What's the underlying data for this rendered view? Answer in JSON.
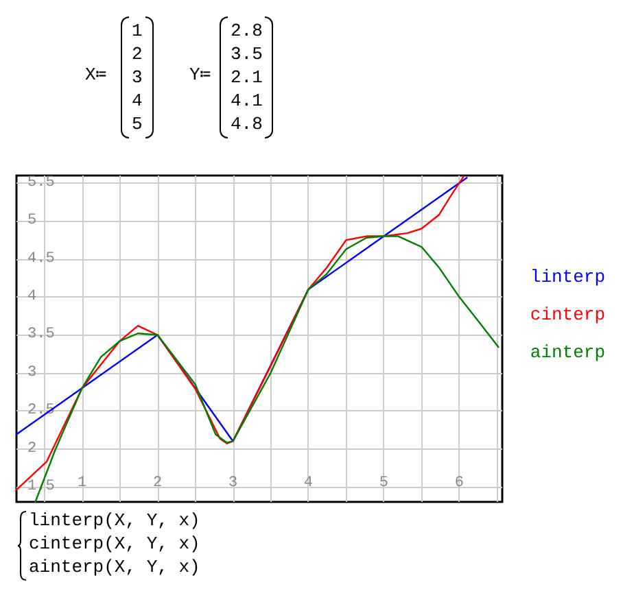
{
  "chart_data": {
    "type": "line",
    "annotations": [
      "X≔",
      "1\n2\n3\n4\n5",
      "Y≔",
      "2.8\n3.5\n2.1\n4.1\n4.8",
      "linterp(X, Y, x)\ncinterp(X, Y, x)\nainterp(X, Y, x)"
    ],
    "series": [
      {
        "name": "linterp",
        "color": "#0000ff",
        "x": [
          0.13,
          1,
          2,
          3,
          4,
          5,
          6.1
        ],
        "values": [
          2.19,
          2.8,
          3.5,
          2.1,
          4.1,
          4.8,
          5.57
        ]
      },
      {
        "name": "cinterp",
        "color": "#ff0000",
        "x": [
          0.13,
          0.53,
          1,
          1.5,
          1.74,
          2,
          2.5,
          2.83,
          2.92,
          3,
          3.5,
          4,
          4.24,
          4.5,
          4.77,
          5,
          5.31,
          5.5,
          5.73,
          5.9,
          6.06
        ],
        "values": [
          1.46,
          1.83,
          2.8,
          3.42,
          3.62,
          3.5,
          2.79,
          2.13,
          2.07,
          2.1,
          3.09,
          4.1,
          4.38,
          4.75,
          4.8,
          4.8,
          4.84,
          4.9,
          5.08,
          5.35,
          5.59
        ]
      },
      {
        "name": "ainterp",
        "color": "#008000",
        "x": [
          0.38,
          0.65,
          1,
          1.25,
          1.5,
          1.74,
          2,
          2.5,
          2.77,
          2.92,
          3,
          3.5,
          4,
          4.24,
          4.5,
          4.77,
          5,
          5.19,
          5.5,
          5.73,
          6,
          6.27,
          6.52
        ],
        "values": [
          1.3,
          2.0,
          2.8,
          3.21,
          3.42,
          3.52,
          3.5,
          2.85,
          2.19,
          2.08,
          2.1,
          3.0,
          4.1,
          4.3,
          4.63,
          4.78,
          4.8,
          4.8,
          4.66,
          4.39,
          4.0,
          3.66,
          3.34
        ]
      }
    ],
    "xlim": [
      0.13,
      6.57
    ],
    "ylim": [
      1.3,
      5.6
    ],
    "xticks": [
      {
        "value": 0.5,
        "label": null
      },
      1,
      {
        "value": 1.5,
        "label": null
      },
      2,
      {
        "value": 2.5,
        "label": null
      },
      3,
      {
        "value": 3.5,
        "label": null
      },
      4,
      {
        "value": 4.5,
        "label": null
      },
      5,
      {
        "value": 5.5,
        "label": null
      },
      6,
      {
        "value": 6.5,
        "label": null
      }
    ],
    "yticks": [
      1.5,
      2,
      2.5,
      3,
      3.5,
      4,
      4.5,
      5,
      5.5
    ],
    "grid": true,
    "legend": "right",
    "marker": "none",
    "line_style": "solid"
  }
}
